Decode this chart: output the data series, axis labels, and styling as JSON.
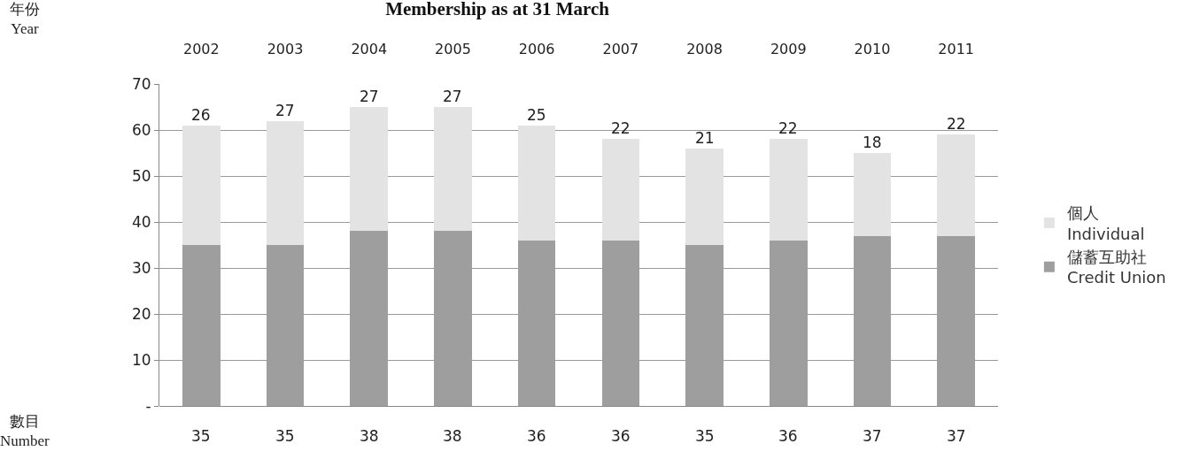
{
  "chart_data": {
    "type": "bar",
    "title": "Membership as at 31 March",
    "categories": [
      "2002",
      "2003",
      "2004",
      "2005",
      "2006",
      "2007",
      "2008",
      "2009",
      "2010",
      "2011"
    ],
    "series": [
      {
        "name": "儲蓄互助社\nCredit Union",
        "color": "#9e9e9e",
        "values": [
          35,
          35,
          38,
          38,
          36,
          36,
          35,
          36,
          37,
          37
        ]
      },
      {
        "name": "個人\nIndividual",
        "color": "#e3e3e3",
        "values": [
          26,
          27,
          27,
          27,
          25,
          22,
          21,
          22,
          18,
          22
        ]
      }
    ],
    "stacked": true,
    "data_labels": true,
    "ylim": [
      0,
      70
    ],
    "yticks": [
      {
        "value": 0,
        "label": "-"
      },
      10,
      20,
      30,
      40,
      50,
      60,
      70
    ],
    "grid": "y",
    "legend": "right",
    "annotations": [
      "年份\nYear",
      "數目\nNumber"
    ]
  }
}
